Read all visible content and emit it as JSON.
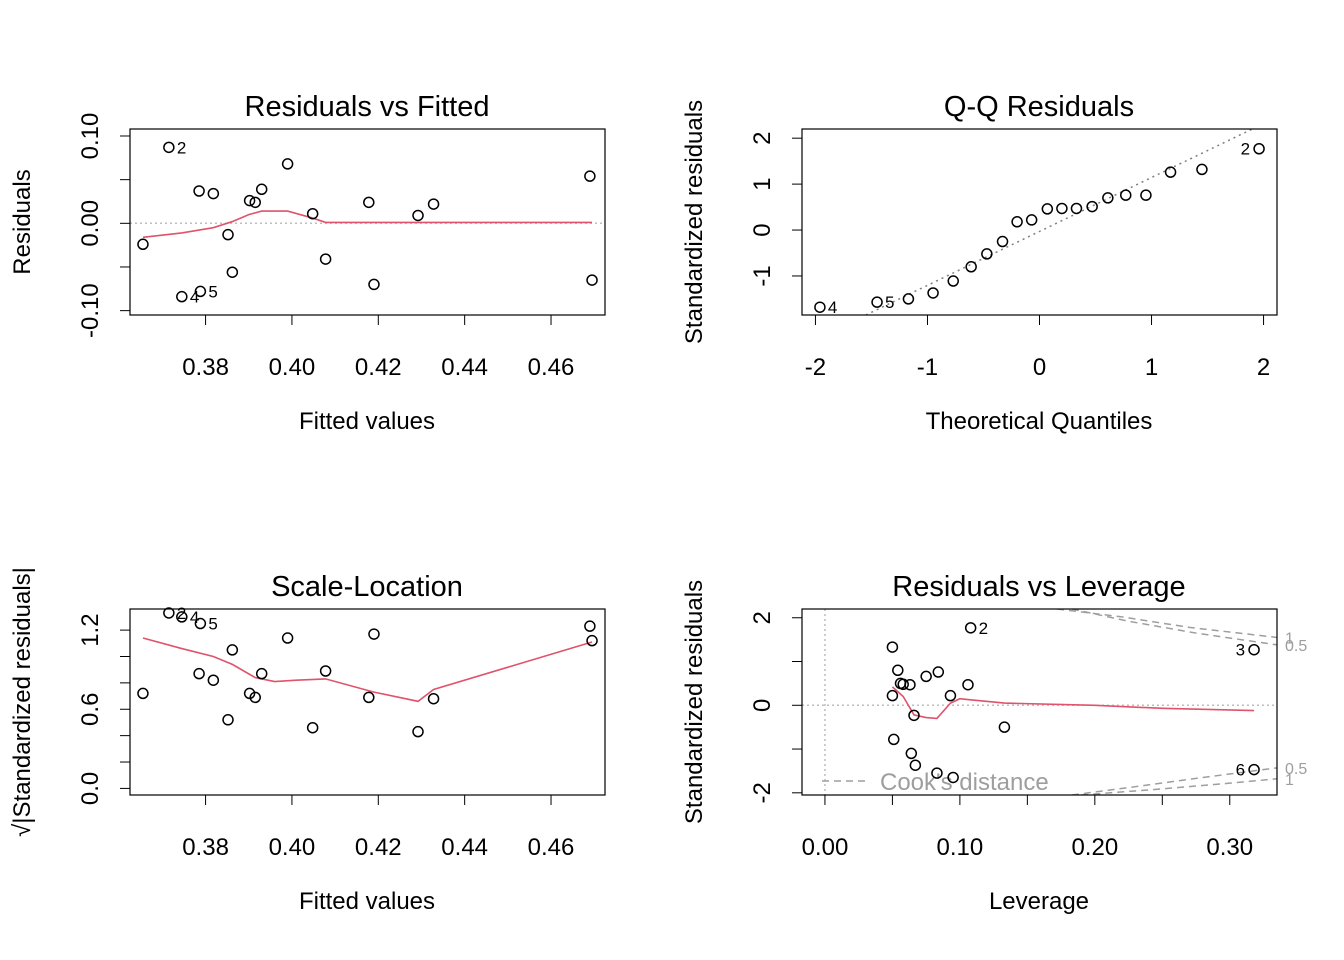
{
  "colors": {
    "axis": "#000000",
    "smoother": "#DF536B",
    "reference": "#BEBEBE",
    "cook_contour": "#9E9E9E",
    "qq_line": "#7F7F7F",
    "points": "#000000"
  },
  "chart_data": [
    {
      "id": "resid-fitted",
      "type": "scatter",
      "title": "Residuals vs Fitted",
      "xlabel": "Fitted values",
      "ylabel": "Residuals",
      "xlim": [
        0.3625,
        0.4725
      ],
      "ylim": [
        -0.105,
        0.108
      ],
      "xticks": [
        0.38,
        0.4,
        0.42,
        0.44,
        0.46
      ],
      "xtick_labels": [
        "0.38",
        "0.40",
        "0.42",
        "0.44",
        "0.46"
      ],
      "yticks": [
        -0.1,
        -0.05,
        0.0,
        0.05,
        0.1
      ],
      "ytick_labels": [
        "-0.10",
        "",
        "0.00",
        "",
        "0.10"
      ],
      "points": [
        {
          "x": 0.3655,
          "y": -0.024
        },
        {
          "x": 0.3715,
          "y": 0.087,
          "label": "2"
        },
        {
          "x": 0.3745,
          "y": -0.084,
          "label": "4"
        },
        {
          "x": 0.3785,
          "y": 0.037
        },
        {
          "x": 0.3788,
          "y": -0.078,
          "label": "5"
        },
        {
          "x": 0.3818,
          "y": 0.034
        },
        {
          "x": 0.3852,
          "y": -0.013
        },
        {
          "x": 0.3862,
          "y": -0.056
        },
        {
          "x": 0.3902,
          "y": 0.026
        },
        {
          "x": 0.3915,
          "y": 0.024
        },
        {
          "x": 0.393,
          "y": 0.039
        },
        {
          "x": 0.399,
          "y": 0.068
        },
        {
          "x": 0.4048,
          "y": 0.011
        },
        {
          "x": 0.4078,
          "y": -0.041
        },
        {
          "x": 0.4178,
          "y": 0.024
        },
        {
          "x": 0.419,
          "y": -0.07
        },
        {
          "x": 0.4292,
          "y": 0.009
        },
        {
          "x": 0.4328,
          "y": 0.022
        },
        {
          "x": 0.469,
          "y": 0.054
        },
        {
          "x": 0.4695,
          "y": -0.065
        }
      ],
      "smoother": [
        [
          0.3655,
          -0.016
        ],
        [
          0.3745,
          -0.011
        ],
        [
          0.3818,
          -0.005
        ],
        [
          0.3862,
          0.002
        ],
        [
          0.39,
          0.01
        ],
        [
          0.393,
          0.014
        ],
        [
          0.399,
          0.014
        ],
        [
          0.4048,
          0.006
        ],
        [
          0.4078,
          0.001
        ],
        [
          0.419,
          0.001
        ],
        [
          0.4328,
          0.001
        ],
        [
          0.4695,
          0.001
        ]
      ],
      "refline": {
        "kind": "h",
        "value": 0
      }
    },
    {
      "id": "qq",
      "type": "scatter",
      "title": "Q-Q Residuals",
      "xlabel": "Theoretical Quantiles",
      "ylabel": "Standardized residuals",
      "xlim": [
        -2.12,
        2.12
      ],
      "ylim": [
        -1.85,
        2.2
      ],
      "xticks": [
        -2,
        -1,
        0,
        1,
        2
      ],
      "xtick_labels": [
        "-2",
        "-1",
        "0",
        "1",
        "2"
      ],
      "yticks": [
        -1,
        0,
        1,
        2
      ],
      "ytick_labels": [
        "-1",
        "0",
        "1",
        "2"
      ],
      "points": [
        {
          "x": -1.96,
          "y": -1.68,
          "label": "4",
          "label_side": "right"
        },
        {
          "x": -1.45,
          "y": -1.57,
          "label": "5",
          "label_side": "right"
        },
        {
          "x": -1.17,
          "y": -1.5
        },
        {
          "x": -0.95,
          "y": -1.37
        },
        {
          "x": -0.77,
          "y": -1.11
        },
        {
          "x": -0.61,
          "y": -0.8
        },
        {
          "x": -0.47,
          "y": -0.52
        },
        {
          "x": -0.33,
          "y": -0.25
        },
        {
          "x": -0.2,
          "y": 0.18
        },
        {
          "x": -0.07,
          "y": 0.22
        },
        {
          "x": 0.07,
          "y": 0.46
        },
        {
          "x": 0.2,
          "y": 0.47
        },
        {
          "x": 0.33,
          "y": 0.47
        },
        {
          "x": 0.47,
          "y": 0.51
        },
        {
          "x": 0.61,
          "y": 0.7
        },
        {
          "x": 0.77,
          "y": 0.76
        },
        {
          "x": 0.95,
          "y": 0.76
        },
        {
          "x": 1.17,
          "y": 1.26
        },
        {
          "x": 1.45,
          "y": 1.32
        },
        {
          "x": 1.96,
          "y": 1.77,
          "label": "2",
          "label_side": "left"
        }
      ],
      "qqline": [
        [
          -1.55,
          -1.85
        ],
        [
          1.9,
          2.2
        ]
      ]
    },
    {
      "id": "scale-location",
      "type": "scatter",
      "title": "Scale-Location",
      "xlabel": "Fitted values",
      "ylabel": "√|Standardized residuals|",
      "xlim": [
        0.3625,
        0.4725
      ],
      "ylim": [
        -0.05,
        1.36
      ],
      "xticks": [
        0.38,
        0.4,
        0.42,
        0.44,
        0.46
      ],
      "xtick_labels": [
        "0.38",
        "0.40",
        "0.42",
        "0.44",
        "0.46"
      ],
      "yticks": [
        0.0,
        0.2,
        0.4,
        0.6,
        0.8,
        1.0,
        1.2
      ],
      "ytick_labels": [
        "0.0",
        "",
        "",
        "0.6",
        "",
        "",
        "1.2"
      ],
      "points": [
        {
          "x": 0.3655,
          "y": 0.72
        },
        {
          "x": 0.3715,
          "y": 1.33,
          "label": "2"
        },
        {
          "x": 0.3745,
          "y": 1.3,
          "label": "4"
        },
        {
          "x": 0.3785,
          "y": 0.87
        },
        {
          "x": 0.3788,
          "y": 1.25,
          "label": "5"
        },
        {
          "x": 0.3818,
          "y": 0.82
        },
        {
          "x": 0.3852,
          "y": 0.52
        },
        {
          "x": 0.3862,
          "y": 1.05
        },
        {
          "x": 0.3902,
          "y": 0.72
        },
        {
          "x": 0.3915,
          "y": 0.69
        },
        {
          "x": 0.393,
          "y": 0.87
        },
        {
          "x": 0.399,
          "y": 1.14
        },
        {
          "x": 0.4048,
          "y": 0.46
        },
        {
          "x": 0.4078,
          "y": 0.89
        },
        {
          "x": 0.4178,
          "y": 0.69
        },
        {
          "x": 0.419,
          "y": 1.17
        },
        {
          "x": 0.4292,
          "y": 0.43
        },
        {
          "x": 0.4328,
          "y": 0.68
        },
        {
          "x": 0.469,
          "y": 1.23
        },
        {
          "x": 0.4695,
          "y": 1.12
        }
      ],
      "smoother": [
        [
          0.3655,
          1.14
        ],
        [
          0.3745,
          1.06
        ],
        [
          0.3818,
          1.0
        ],
        [
          0.3862,
          0.94
        ],
        [
          0.3915,
          0.84
        ],
        [
          0.396,
          0.81
        ],
        [
          0.401,
          0.82
        ],
        [
          0.4078,
          0.83
        ],
        [
          0.419,
          0.73
        ],
        [
          0.4292,
          0.66
        ],
        [
          0.4328,
          0.75
        ],
        [
          0.4695,
          1.11
        ]
      ]
    },
    {
      "id": "resid-leverage",
      "type": "scatter",
      "title": "Residuals vs Leverage",
      "xlabel": "Leverage",
      "ylabel": "Standardized residuals",
      "xlim": [
        -0.017,
        0.335
      ],
      "ylim": [
        -2.05,
        2.2
      ],
      "xticks": [
        0.0,
        0.05,
        0.1,
        0.15,
        0.2,
        0.25,
        0.3
      ],
      "xtick_labels": [
        "0.00",
        "",
        "0.10",
        "",
        "0.20",
        "",
        "0.30"
      ],
      "yticks": [
        -2,
        -1,
        0,
        1,
        2
      ],
      "ytick_labels": [
        "-2",
        "",
        "0",
        "",
        "2"
      ],
      "points": [
        {
          "x": 0.05,
          "y": 1.33
        },
        {
          "x": 0.05,
          "y": 0.22
        },
        {
          "x": 0.051,
          "y": -0.78
        },
        {
          "x": 0.054,
          "y": 0.8
        },
        {
          "x": 0.056,
          "y": 0.5
        },
        {
          "x": 0.058,
          "y": 0.48
        },
        {
          "x": 0.063,
          "y": 0.47
        },
        {
          "x": 0.064,
          "y": -1.1
        },
        {
          "x": 0.066,
          "y": -0.23
        },
        {
          "x": 0.067,
          "y": -1.37
        },
        {
          "x": 0.075,
          "y": 0.66
        },
        {
          "x": 0.083,
          "y": -1.55
        },
        {
          "x": 0.084,
          "y": 0.76
        },
        {
          "x": 0.093,
          "y": 0.22
        },
        {
          "x": 0.095,
          "y": -1.65
        },
        {
          "x": 0.106,
          "y": 0.47
        },
        {
          "x": 0.108,
          "y": 1.77,
          "label": "2",
          "label_side": "right"
        },
        {
          "x": 0.133,
          "y": -0.5
        },
        {
          "x": 0.318,
          "y": 1.27,
          "label": "3",
          "label_side": "left"
        },
        {
          "x": 0.318,
          "y": -1.47,
          "label": "6",
          "label_side": "left"
        }
      ],
      "smoother": [
        [
          0.05,
          0.42
        ],
        [
          0.058,
          0.2
        ],
        [
          0.066,
          -0.22
        ],
        [
          0.075,
          -0.28
        ],
        [
          0.083,
          -0.3
        ],
        [
          0.093,
          0.05
        ],
        [
          0.1,
          0.15
        ],
        [
          0.106,
          0.13
        ],
        [
          0.133,
          0.05
        ],
        [
          0.2,
          0.0
        ],
        [
          0.25,
          -0.07
        ],
        [
          0.318,
          -0.12
        ]
      ],
      "refline": {
        "kind": "both",
        "value": 0
      },
      "cooks": {
        "legend": "Cook's distance",
        "levels": [
          {
            "label": "1",
            "upper": [
              [
                0.172,
                2.2
              ],
              [
                0.22,
                2.02
              ],
              [
                0.27,
                1.78
              ],
              [
                0.335,
                1.55
              ]
            ],
            "lower": [
              [
                0.19,
                -2.05
              ],
              [
                0.25,
                -1.91
              ],
              [
                0.3,
                -1.78
              ],
              [
                0.335,
                -1.68
              ]
            ]
          },
          {
            "label": "0.5",
            "upper": [
              [
                0.183,
                2.2
              ],
              [
                0.225,
                1.92
              ],
              [
                0.275,
                1.65
              ],
              [
                0.335,
                1.38
              ]
            ],
            "lower": [
              [
                0.183,
                -2.05
              ],
              [
                0.23,
                -1.86
              ],
              [
                0.28,
                -1.65
              ],
              [
                0.335,
                -1.43
              ]
            ]
          }
        ]
      }
    }
  ]
}
